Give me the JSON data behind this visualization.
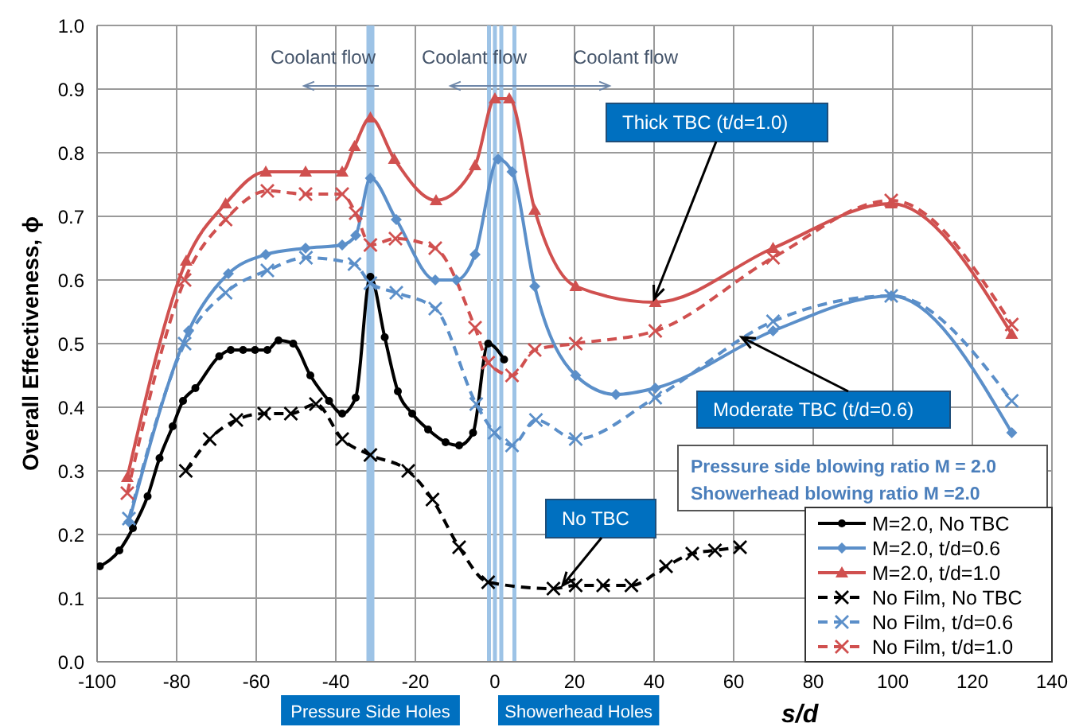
{
  "chart_data": {
    "type": "line",
    "xlabel": "s/d",
    "ylabel": "Overall Effectiveness, ϕ",
    "xlim": [
      -100,
      140
    ],
    "xticks": [
      -100,
      -80,
      -60,
      -40,
      -20,
      0,
      20,
      40,
      60,
      80,
      100,
      120,
      140
    ],
    "ylim": [
      0,
      1
    ],
    "yticks": [
      {
        "value": 0,
        "label": "0.0"
      },
      {
        "value": 0.1,
        "label": "0.1"
      },
      {
        "value": 0.2,
        "label": "0.2"
      },
      {
        "value": 0.3,
        "label": "0.3"
      },
      {
        "value": 0.4,
        "label": "0.4"
      },
      {
        "value": 0.5,
        "label": "0.5"
      },
      {
        "value": 0.6,
        "label": "0.6"
      },
      {
        "value": 0.7,
        "label": "0.7"
      },
      {
        "value": 0.8,
        "label": "0.8"
      },
      {
        "value": 0.9,
        "label": "0.9"
      },
      {
        "value": 1,
        "label": "1.0"
      }
    ],
    "grid": true,
    "legend": "bottom right",
    "series": [
      {
        "name": "M=2.0, No TBC",
        "color": "#000000",
        "marker": "circle",
        "line_style": "solid",
        "x": [
          -99.3,
          -94.4,
          -91,
          -87.3,
          -84.3,
          -81,
          -78.4,
          -75.3,
          -69.3,
          -66.4,
          -63.3,
          -60.3,
          -57.2,
          -54.4,
          -50.7,
          -46.4,
          -41.7,
          -38.4,
          -35,
          -31.3,
          -27.7,
          -24.4,
          -20.8,
          -16.8,
          -12.4,
          -9,
          -5.5,
          -1.7,
          2.3
        ],
        "values": [
          0.15,
          0.175,
          0.21,
          0.26,
          0.32,
          0.37,
          0.41,
          0.43,
          0.48,
          0.49,
          0.49,
          0.49,
          0.49,
          0.505,
          0.5,
          0.45,
          0.41,
          0.39,
          0.415,
          0.605,
          0.51,
          0.425,
          0.39,
          0.365,
          0.345,
          0.34,
          0.36,
          0.5,
          0.475
        ]
      },
      {
        "name": "M=2.0, t/d=0.6",
        "color": "#5b8fc9",
        "marker": "diamond",
        "line_style": "solid",
        "x": [
          -92,
          -77,
          -67,
          -57.6,
          -47.6,
          -38.4,
          -35,
          -31.3,
          -24.8,
          -15,
          -9.7,
          -5,
          0.8,
          4.3,
          10,
          20.3,
          30.4,
          40.3,
          69.9,
          99.6,
          129.9
        ],
        "values": [
          0.22,
          0.52,
          0.61,
          0.64,
          0.65,
          0.655,
          0.67,
          0.76,
          0.695,
          0.6,
          0.6,
          0.64,
          0.79,
          0.77,
          0.59,
          0.45,
          0.42,
          0.43,
          0.52,
          0.575,
          0.36
        ]
      },
      {
        "name": "M=2.0, t/d=1.0",
        "color": "#d0504f",
        "marker": "triangle",
        "line_style": "solid",
        "x": [
          -92.4,
          -77.6,
          -67.7,
          -57.6,
          -47.6,
          -38.4,
          -35.3,
          -31.3,
          -25.3,
          -14.8,
          -5,
          0,
          3.6,
          10,
          20.3,
          40.3,
          69.9,
          99.6,
          129.9
        ],
        "values": [
          0.29,
          0.63,
          0.72,
          0.77,
          0.77,
          0.77,
          0.81,
          0.855,
          0.79,
          0.725,
          0.78,
          0.885,
          0.885,
          0.71,
          0.59,
          0.565,
          0.65,
          0.72,
          0.515
        ]
      },
      {
        "name": "No Film, No TBC",
        "color": "#000000",
        "marker": "cross",
        "line_style": "dashed",
        "x": [
          -77.7,
          -71.7,
          -65,
          -58,
          -51.3,
          -45,
          -38.4,
          -31.3,
          -21.8,
          -15.7,
          -9,
          -1.7,
          14.7,
          20.3,
          27.2,
          34.3,
          43,
          49.6,
          55.3,
          61.6
        ],
        "values": [
          0.3,
          0.35,
          0.38,
          0.39,
          0.39,
          0.405,
          0.35,
          0.325,
          0.3,
          0.255,
          0.18,
          0.125,
          0.115,
          0.12,
          0.12,
          0.12,
          0.15,
          0.17,
          0.175,
          0.18
        ]
      },
      {
        "name": "No Film, t/d=0.6",
        "color": "#5b8fc9",
        "marker": "cross",
        "line_style": "dashed",
        "x": [
          -92,
          -78,
          -67.7,
          -57.2,
          -47.5,
          -35.3,
          -31.3,
          -24.8,
          -15,
          -4.7,
          -0.1,
          4.3,
          10.3,
          20.3,
          40.3,
          69.9,
          99.6,
          129.9
        ],
        "values": [
          0.225,
          0.5,
          0.58,
          0.615,
          0.635,
          0.625,
          0.595,
          0.58,
          0.555,
          0.405,
          0.36,
          0.34,
          0.38,
          0.35,
          0.415,
          0.535,
          0.575,
          0.41
        ]
      },
      {
        "name": "No Film, t/d=1.0",
        "color": "#d0504f",
        "marker": "cross",
        "line_style": "dashed",
        "x": [
          -92.4,
          -78,
          -67.7,
          -57.2,
          -47.6,
          -38.4,
          -35,
          -31.3,
          -25,
          -15,
          -5,
          -1.7,
          4.3,
          10,
          20.3,
          40.3,
          69.9,
          99.6,
          129.9
        ],
        "values": [
          0.265,
          0.6,
          0.695,
          0.74,
          0.735,
          0.735,
          0.705,
          0.655,
          0.665,
          0.65,
          0.525,
          0.47,
          0.45,
          0.49,
          0.5,
          0.52,
          0.635,
          0.725,
          0.53
        ]
      }
    ],
    "ref_lines": [
      {
        "axis": "x",
        "value": -31.3,
        "label": "Pressure Side Holes",
        "color": "#9dc3e6"
      },
      {
        "axis": "x",
        "value": -1.5,
        "label": null,
        "color": "#9dc3e6"
      },
      {
        "axis": "x",
        "value": 0,
        "label": "Showerhead  Holes",
        "color": "#9dc3e6"
      },
      {
        "axis": "x",
        "value": 1.6,
        "label": null,
        "color": "#9dc3e6"
      },
      {
        "axis": "x",
        "value": 4.9,
        "label": null,
        "color": "#9dc3e6"
      }
    ],
    "annotations": [
      "Coolant flow",
      "Coolant flow",
      "Coolant flow",
      {
        "text": "Thick TBC (t/d=1.0)",
        "x": 40,
        "y": 0.57
      },
      {
        "text": "Moderate TBC (t/d=0.6)",
        "x": 62,
        "y": 0.51
      },
      {
        "text": "No TBC",
        "x": 17,
        "y": 0.12
      },
      "Pressure side blowing ratio M = 2.0",
      "Showerhead blowing ratio M =2.0"
    ]
  }
}
